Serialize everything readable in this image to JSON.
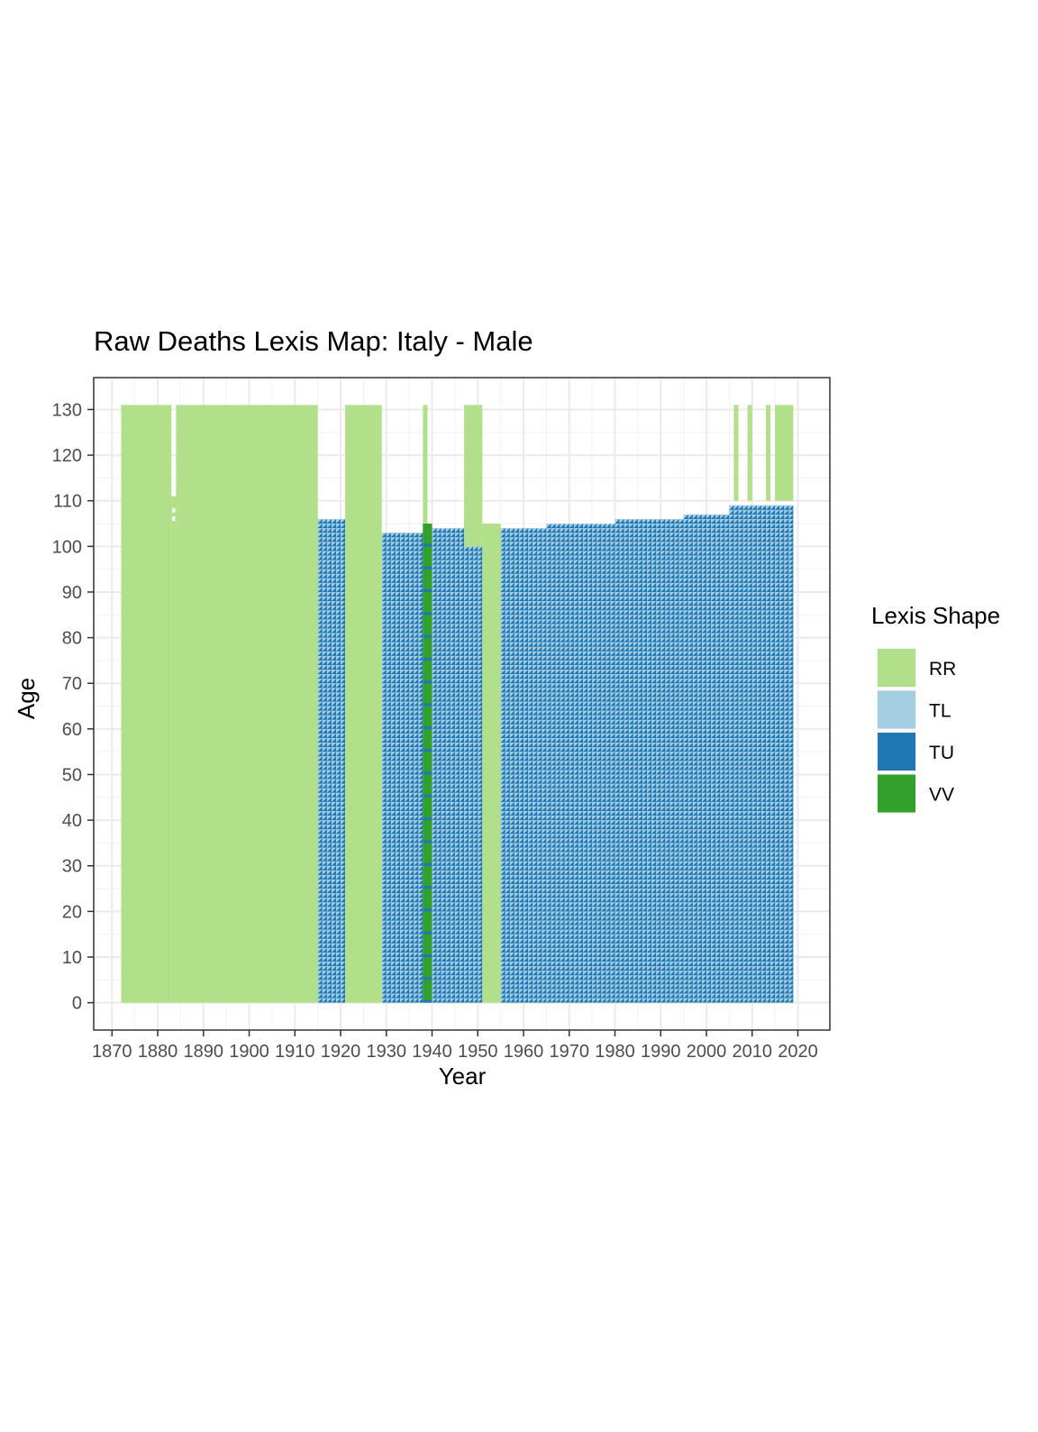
{
  "chart_data": {
    "type": "heatmap",
    "title": "Raw Deaths Lexis Map: Italy  - Male",
    "xlabel": "Year",
    "ylabel": "Age",
    "xlim": [
      1866,
      2027
    ],
    "ylim": [
      -6,
      137
    ],
    "x_ticks": [
      1870,
      1880,
      1890,
      1900,
      1910,
      1920,
      1930,
      1940,
      1950,
      1960,
      1970,
      1980,
      1990,
      2000,
      2010,
      2020
    ],
    "x_tick_labels": [
      "1870",
      "1880",
      "1890",
      "1900",
      "1910",
      "1920",
      "1930",
      "1940",
      "1950",
      "1960",
      "1970",
      "1980",
      "1990",
      "2000",
      "2010",
      "2020"
    ],
    "y_ticks": [
      0,
      10,
      20,
      30,
      40,
      50,
      60,
      70,
      80,
      90,
      100,
      110,
      120,
      130
    ],
    "y_tick_labels": [
      "0",
      "10",
      "20",
      "30",
      "40",
      "50",
      "60",
      "70",
      "80",
      "90",
      "100",
      "110",
      "120",
      "130"
    ],
    "grid": true,
    "legend": {
      "title": "Lexis Shape",
      "position": "right",
      "entries": [
        {
          "label": "RR",
          "color": "#B2DF8A"
        },
        {
          "label": "TL",
          "color": "#A6CEE3"
        },
        {
          "label": "TU",
          "color": "#1F78B4"
        },
        {
          "label": "VV",
          "color": "#33A02C"
        }
      ]
    },
    "colors": {
      "RR": "#B2DF8A",
      "TL": "#A6CEE3",
      "TU": "#1F78B4",
      "VV": "#33A02C"
    },
    "rr_blocks": [
      {
        "year_start": 1872,
        "year_end": 1883,
        "age_start": 0,
        "age_end": 131
      },
      {
        "year_start": 1883,
        "year_end": 1884,
        "age_start": 0,
        "age_end": 111
      },
      {
        "year_start": 1884,
        "year_end": 1915,
        "age_start": 0,
        "age_end": 131
      },
      {
        "year_start": 1921,
        "year_end": 1929,
        "age_start": 0,
        "age_end": 131
      },
      {
        "year_start": 1938,
        "year_end": 1939,
        "age_start": 105,
        "age_end": 131
      },
      {
        "year_start": 1947,
        "year_end": 1951,
        "age_start": 100,
        "age_end": 131
      },
      {
        "year_start": 1951,
        "year_end": 1955,
        "age_start": 0,
        "age_end": 105
      },
      {
        "year_start": 2006,
        "year_end": 2007,
        "age_start": 110,
        "age_end": 131
      },
      {
        "year_start": 2009,
        "year_end": 2010,
        "age_start": 110,
        "age_end": 131
      },
      {
        "year_start": 2013,
        "year_end": 2014,
        "age_start": 110,
        "age_end": 131
      },
      {
        "year_start": 2015,
        "year_end": 2019,
        "age_start": 110,
        "age_end": 131
      }
    ],
    "triangle_blocks": [
      {
        "year_start": 1915,
        "year_end": 1921,
        "age_start": 0,
        "age_end": 106
      },
      {
        "year_start": 1929,
        "year_end": 1938,
        "age_start": 0,
        "age_end": 103
      },
      {
        "year_start": 1940,
        "year_end": 1947,
        "age_start": 0,
        "age_end": 104
      },
      {
        "year_start": 1947,
        "year_end": 1951,
        "age_start": 0,
        "age_end": 100
      },
      {
        "year_start": 1955,
        "year_end": 1965,
        "age_start": 0,
        "age_end": 104
      },
      {
        "year_start": 1965,
        "year_end": 1980,
        "age_start": 0,
        "age_end": 105
      },
      {
        "year_start": 1980,
        "year_end": 1995,
        "age_start": 0,
        "age_end": 106
      },
      {
        "year_start": 1995,
        "year_end": 2005,
        "age_start": 0,
        "age_end": 107
      },
      {
        "year_start": 2005,
        "year_end": 2019,
        "age_start": 0,
        "age_end": 109
      }
    ],
    "vv_blocks": [
      {
        "year_start": 1938,
        "year_end": 1940,
        "age_start": 0,
        "age_end": 105
      }
    ]
  }
}
